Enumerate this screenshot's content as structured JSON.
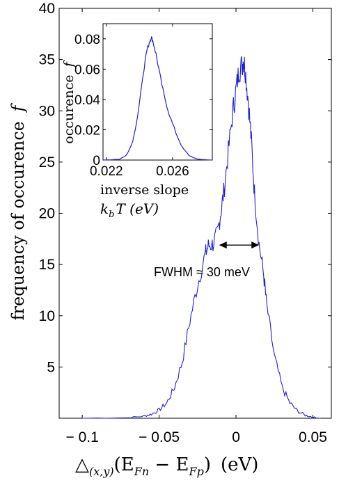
{
  "chart_data": [
    {
      "type": "line",
      "ylabel": "frequency of occurence",
      "ylabel_symbol": "f",
      "xlabel_prefix": "△",
      "xlabel_subscript": "(x,y)",
      "xlabel_body": "(E",
      "xlabel_sub_n": "Fn",
      "xlabel_minus": " − E",
      "xlabel_sub_p": "Fp",
      "xlabel_close": ")",
      "xlabel_unit": "(eV)",
      "xlim": [
        -0.115,
        0.062
      ],
      "ylim": [
        0,
        40
      ],
      "x_ticks": [
        {
          "value": -0.1,
          "label": "− 0.1"
        },
        {
          "value": -0.05,
          "label": "− 0.05"
        },
        {
          "value": 0,
          "label": "0"
        },
        {
          "value": 0.05,
          "label": "0.05"
        }
      ],
      "y_ticks": [
        {
          "value": 5,
          "label": "5"
        },
        {
          "value": 10,
          "label": "10"
        },
        {
          "value": 15,
          "label": "15"
        },
        {
          "value": 20,
          "label": "20"
        },
        {
          "value": 25,
          "label": "25"
        },
        {
          "value": 30,
          "label": "30"
        },
        {
          "value": 35,
          "label": "35"
        },
        {
          "value": 40,
          "label": "40"
        }
      ],
      "series": [
        {
          "color": "#1f1fd6",
          "x": [
            -0.1,
            -0.07,
            -0.06,
            -0.055,
            -0.05,
            -0.045,
            -0.04,
            -0.035,
            -0.03,
            -0.025,
            -0.02,
            -0.018,
            -0.015,
            -0.012,
            -0.01,
            -0.008,
            -0.005,
            -0.002,
            0,
            0.002,
            0.004,
            0.005,
            0.006,
            0.008,
            0.01,
            0.012,
            0.015,
            0.018,
            0.02,
            0.025,
            0.03,
            0.035,
            0.04,
            0.045,
            0.05,
            0.055
          ],
          "y": [
            0,
            0.05,
            0.2,
            0.4,
            0.8,
            1.5,
            3,
            5.5,
            9.5,
            13,
            16,
            16.8,
            17,
            18,
            20,
            22,
            26,
            30,
            32,
            34,
            34.5,
            35,
            34,
            31,
            27,
            22,
            17,
            14,
            11,
            6,
            3,
            1.5,
            0.7,
            0.3,
            0.1,
            0
          ]
        }
      ],
      "annotations": [
        {
          "text": "FWHM ≈ 30 meV",
          "x_from": -0.011,
          "x_to": 0.015,
          "y": 16.9
        }
      ]
    },
    {
      "type": "line",
      "inset": true,
      "ylabel": "occurence",
      "ylabel_symbol": "f",
      "xlabel_line1": "inverse slope",
      "xlabel_line2_symbol": "k",
      "xlabel_line2_sub": "b",
      "xlabel_line2_rest": "T (eV)",
      "xlim": [
        0.0218,
        0.0284
      ],
      "ylim": [
        0,
        0.09
      ],
      "x_ticks": [
        {
          "value": 0.022,
          "label": "0.022"
        },
        {
          "value": 0.026,
          "label": "0.026"
        }
      ],
      "y_ticks": [
        {
          "value": 0,
          "label": "0"
        },
        {
          "value": 0.02,
          "label": "0.02"
        },
        {
          "value": 0.04,
          "label": "0.04"
        },
        {
          "value": 0.06,
          "label": "0.06"
        },
        {
          "value": 0.08,
          "label": "0.08"
        }
      ],
      "series": [
        {
          "color": "#1f1fd6",
          "x": [
            0.0218,
            0.0228,
            0.0232,
            0.0236,
            0.0239,
            0.0242,
            0.0244,
            0.0246,
            0.0247,
            0.0248,
            0.025,
            0.0252,
            0.0255,
            0.0258,
            0.0262,
            0.0266,
            0.027,
            0.0275,
            0.0284
          ],
          "y": [
            0,
            0.0005,
            0.003,
            0.012,
            0.03,
            0.055,
            0.07,
            0.078,
            0.081,
            0.079,
            0.07,
            0.058,
            0.042,
            0.03,
            0.018,
            0.008,
            0.003,
            0.0005,
            0
          ]
        }
      ]
    }
  ]
}
